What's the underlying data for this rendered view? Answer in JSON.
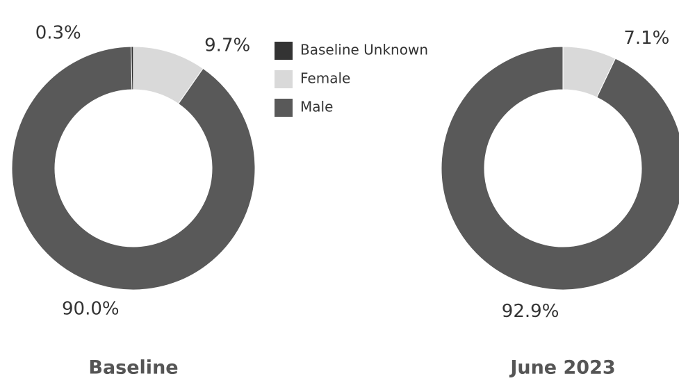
{
  "chart_data": [
    {
      "type": "pie",
      "title": "Baseline",
      "categories": [
        "Female",
        "Male",
        "Baseline Unknown"
      ],
      "values": [
        9.7,
        90.0,
        0.3
      ],
      "value_labels": [
        "9.7%",
        "90.0%",
        "0.3%"
      ],
      "colors": [
        "#d9d9d9",
        "#595959",
        "#333333"
      ]
    },
    {
      "type": "pie",
      "title": "June 2023",
      "categories": [
        "Female",
        "Male"
      ],
      "values": [
        7.1,
        92.9
      ],
      "value_labels": [
        "7.1%",
        "92.9%"
      ],
      "colors": [
        "#d9d9d9",
        "#595959"
      ]
    }
  ]
}
